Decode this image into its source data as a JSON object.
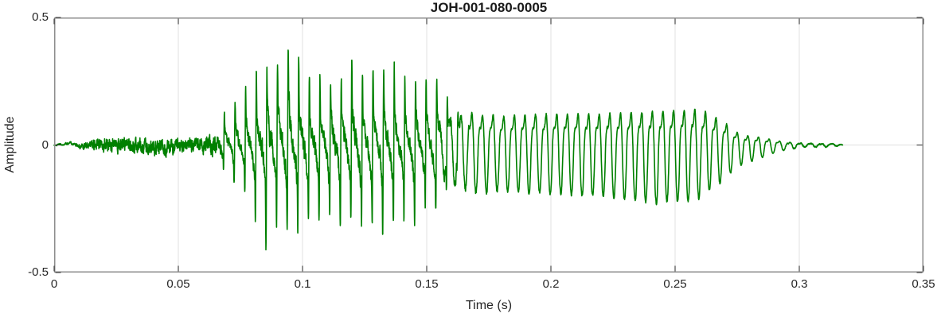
{
  "chart_data": {
    "type": "line",
    "title": "JOH-001-080-0005",
    "xlabel": "Time (s)",
    "ylabel": "Amplitude",
    "xlim": [
      0,
      0.35
    ],
    "ylim": [
      -0.5,
      0.5
    ],
    "xticks": [
      0,
      0.05,
      0.1,
      0.15,
      0.2,
      0.25,
      0.3,
      0.35
    ],
    "xtick_labels": [
      "0",
      "0.05",
      "0.1",
      "0.15",
      "0.2",
      "0.25",
      "0.3",
      "0.35"
    ],
    "yticks": [
      -0.5,
      0,
      0.5
    ],
    "ytick_labels": [
      "-0.5",
      "0",
      "0.5"
    ],
    "grid": true,
    "legend_position": "none",
    "line_color": "#008000",
    "axis_box_color": "#8c8c8c",
    "grid_color": "#e0e0e0",
    "tick_color": "#262626",
    "text_color": "#262626",
    "title_color": "#1a1a1a",
    "signal": {
      "kind": "speech-audio-waveform",
      "duration_s": 0.3175,
      "f0_hz": 234,
      "segments": [
        {
          "name": "low-level-breathy-noise",
          "t_start": 0.0,
          "t_end": 0.065,
          "peak_amp": 0.05
        },
        {
          "name": "loud-voiced-burst-spiky",
          "t_start": 0.065,
          "t_end": 0.162,
          "peak_amp": 0.45
        },
        {
          "name": "steady-voiced-oscillation",
          "t_start": 0.162,
          "t_end": 0.27,
          "peak_amp": 0.24
        },
        {
          "name": "decay-tail",
          "t_start": 0.27,
          "t_end": 0.3175,
          "peak_amp": 0.08
        }
      ],
      "envelope_t_pos_neg": [
        [
          0.0,
          0.008,
          0.008
        ],
        [
          0.006,
          0.018,
          0.018
        ],
        [
          0.012,
          0.032,
          0.038
        ],
        [
          0.016,
          0.04,
          0.042
        ],
        [
          0.02,
          0.042,
          0.048
        ],
        [
          0.03,
          0.045,
          0.05
        ],
        [
          0.04,
          0.045,
          0.052
        ],
        [
          0.05,
          0.042,
          0.05
        ],
        [
          0.058,
          0.04,
          0.048
        ],
        [
          0.064,
          0.065,
          0.075
        ],
        [
          0.068,
          0.13,
          0.115
        ],
        [
          0.072,
          0.19,
          0.165
        ],
        [
          0.076,
          0.25,
          0.21
        ],
        [
          0.08,
          0.33,
          0.285
        ],
        [
          0.084,
          0.36,
          0.43
        ],
        [
          0.088,
          0.4,
          0.455
        ],
        [
          0.092,
          0.435,
          0.42
        ],
        [
          0.096,
          0.45,
          0.4
        ],
        [
          0.1,
          0.39,
          0.38
        ],
        [
          0.105,
          0.33,
          0.36
        ],
        [
          0.11,
          0.31,
          0.35
        ],
        [
          0.115,
          0.33,
          0.34
        ],
        [
          0.12,
          0.39,
          0.345
        ],
        [
          0.125,
          0.33,
          0.355
        ],
        [
          0.13,
          0.32,
          0.385
        ],
        [
          0.135,
          0.37,
          0.375
        ],
        [
          0.14,
          0.31,
          0.35
        ],
        [
          0.145,
          0.29,
          0.33
        ],
        [
          0.15,
          0.32,
          0.31
        ],
        [
          0.155,
          0.3,
          0.33
        ],
        [
          0.16,
          0.24,
          0.28
        ],
        [
          0.165,
          0.175,
          0.23
        ],
        [
          0.17,
          0.15,
          0.2
        ],
        [
          0.18,
          0.14,
          0.19
        ],
        [
          0.19,
          0.145,
          0.195
        ],
        [
          0.2,
          0.15,
          0.2
        ],
        [
          0.21,
          0.15,
          0.205
        ],
        [
          0.22,
          0.15,
          0.21
        ],
        [
          0.23,
          0.155,
          0.225
        ],
        [
          0.24,
          0.16,
          0.24
        ],
        [
          0.248,
          0.165,
          0.235
        ],
        [
          0.255,
          0.17,
          0.23
        ],
        [
          0.26,
          0.165,
          0.215
        ],
        [
          0.265,
          0.145,
          0.18
        ],
        [
          0.27,
          0.11,
          0.145
        ],
        [
          0.273,
          0.075,
          0.105
        ],
        [
          0.277,
          0.048,
          0.078
        ],
        [
          0.282,
          0.042,
          0.065
        ],
        [
          0.287,
          0.03,
          0.042
        ],
        [
          0.292,
          0.02,
          0.026
        ],
        [
          0.297,
          0.014,
          0.018
        ],
        [
          0.3,
          0.013,
          0.016
        ],
        [
          0.305,
          0.011,
          0.013
        ],
        [
          0.31,
          0.01,
          0.012
        ],
        [
          0.3175,
          0.006,
          0.006
        ]
      ],
      "texture_weights": {
        "noise_slow": [
          [
            0,
            1
          ],
          [
            0.01,
            1
          ],
          [
            0.018,
            0.35
          ],
          [
            0.03,
            0.25
          ],
          [
            0.06,
            0.25
          ],
          [
            0.067,
            0
          ],
          [
            0.3175,
            0
          ]
        ],
        "noise_mid": [
          [
            0,
            0.1
          ],
          [
            0.01,
            0.25
          ],
          [
            0.018,
            1
          ],
          [
            0.06,
            1
          ],
          [
            0.068,
            0.18
          ],
          [
            0.16,
            0.14
          ],
          [
            0.172,
            0.05
          ],
          [
            0.29,
            0.05
          ],
          [
            0.3,
            0.3
          ],
          [
            0.3175,
            0.45
          ]
        ],
        "voiced_spiky": [
          [
            0,
            0
          ],
          [
            0.062,
            0
          ],
          [
            0.07,
            1
          ],
          [
            0.152,
            1
          ],
          [
            0.168,
            0
          ],
          [
            0.3175,
            0
          ]
        ],
        "voiced_smooth": [
          [
            0,
            0
          ],
          [
            0.152,
            0
          ],
          [
            0.168,
            1
          ],
          [
            0.295,
            1
          ],
          [
            0.302,
            0.7
          ],
          [
            0.3175,
            0.55
          ]
        ]
      }
    }
  }
}
